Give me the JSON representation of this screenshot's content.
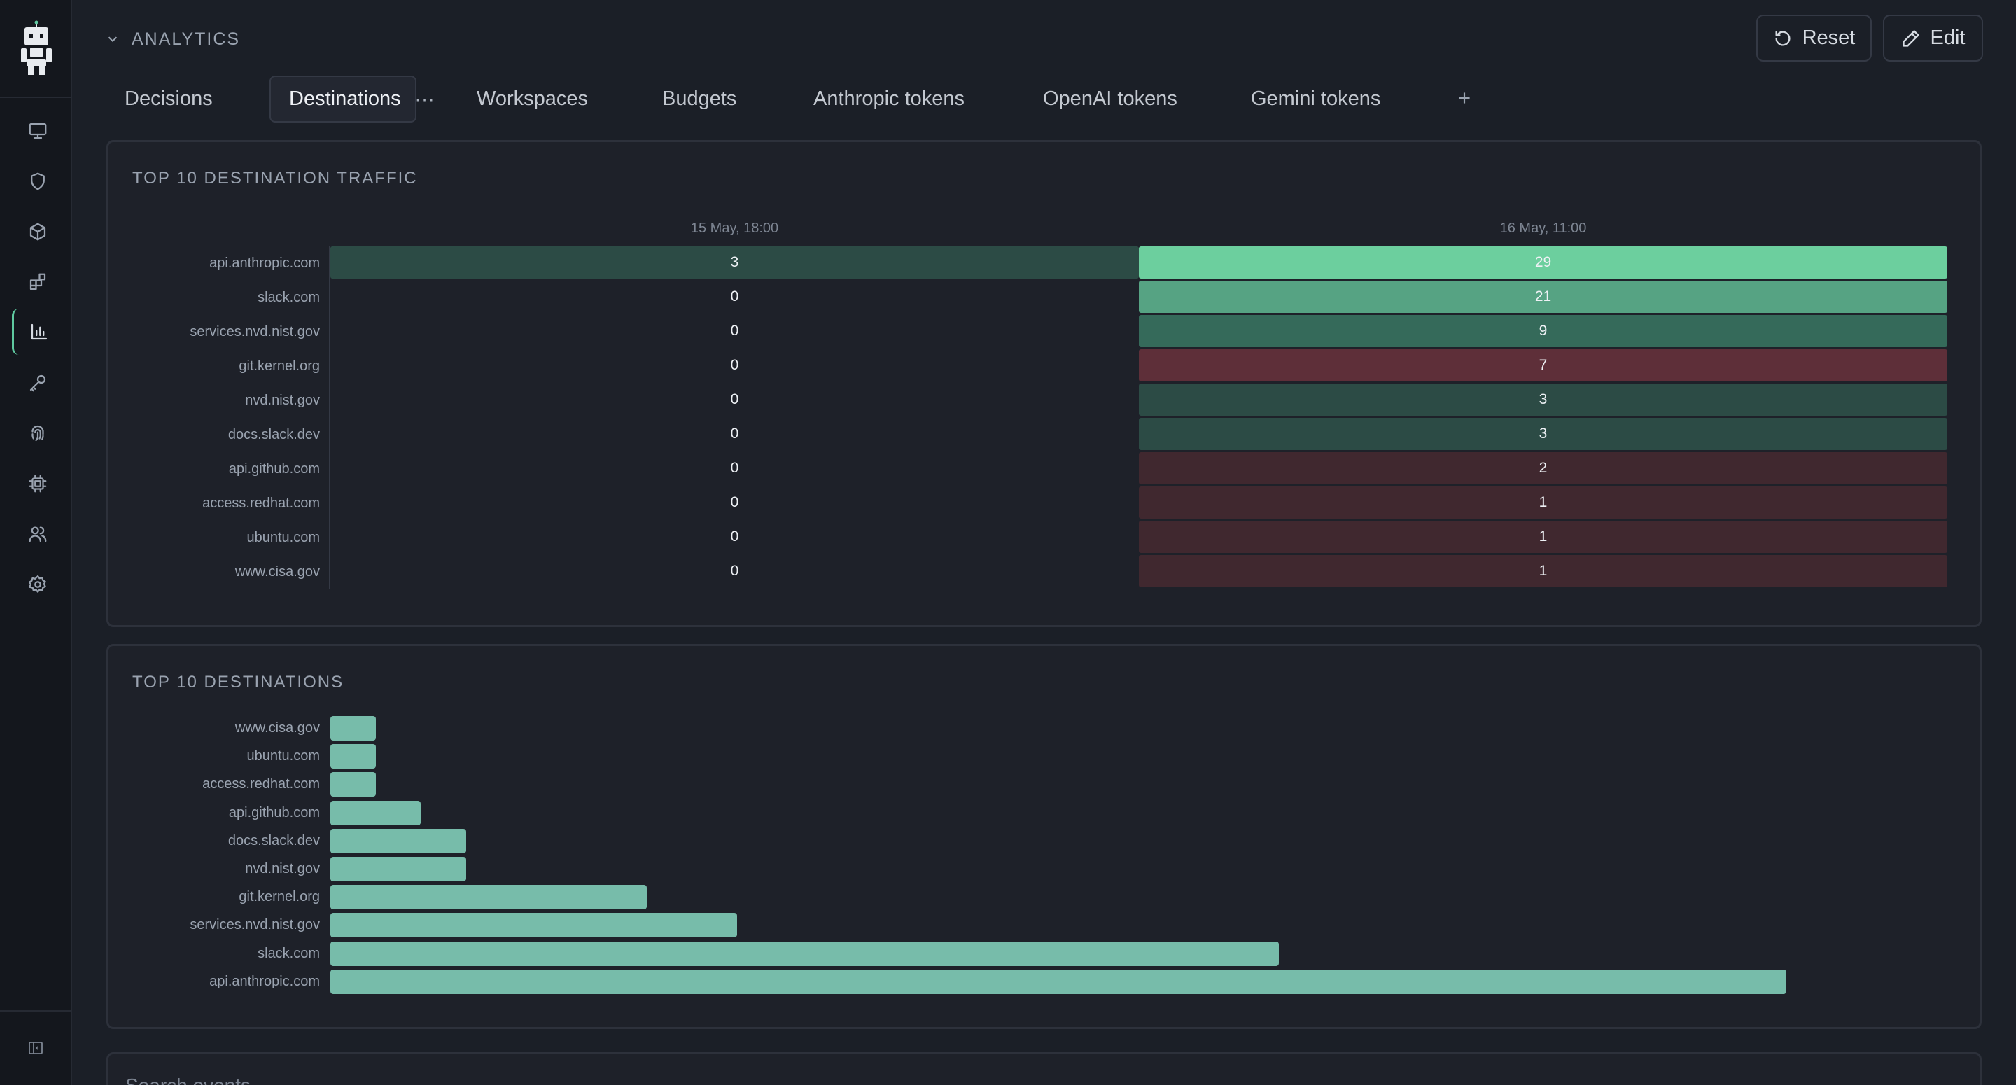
{
  "section": {
    "title": "ANALYTICS",
    "toggle_icon": "chevron-down-icon"
  },
  "header_buttons": {
    "reset_label": "Reset",
    "edit_label": "Edit"
  },
  "tabs": [
    {
      "label": "Decisions",
      "active": false
    },
    {
      "label": "Destinations",
      "active": true,
      "menu": "···"
    },
    {
      "label": "Workspaces",
      "active": false
    },
    {
      "label": "Budgets",
      "active": false
    },
    {
      "label": "Anthropic tokens",
      "active": false
    },
    {
      "label": "OpenAI tokens",
      "active": false
    },
    {
      "label": "Gemini tokens",
      "active": false
    }
  ],
  "sidebar": {
    "items": [
      {
        "icon": "monitor-icon"
      },
      {
        "icon": "shield-icon"
      },
      {
        "icon": "package-icon"
      },
      {
        "icon": "blocks-icon"
      },
      {
        "icon": "bar-chart-icon",
        "active": true
      },
      {
        "icon": "key-icon"
      },
      {
        "icon": "fingerprint-icon"
      },
      {
        "icon": "chip-icon"
      },
      {
        "icon": "users-icon"
      },
      {
        "icon": "settings-icon"
      }
    ],
    "bottom_icon": "panel-collapse-icon"
  },
  "heatmap": {
    "title": "TOP 10 DESTINATION TRAFFIC",
    "columns": [
      "15 May, 18:00",
      "16 May, 11:00"
    ],
    "rows": [
      {
        "label": "api.anthropic.com",
        "values": [
          3,
          29
        ]
      },
      {
        "label": "slack.com",
        "values": [
          0,
          21
        ]
      },
      {
        "label": "services.nvd.nist.gov",
        "values": [
          0,
          9
        ]
      },
      {
        "label": "git.kernel.org",
        "values": [
          0,
          7
        ]
      },
      {
        "label": "nvd.nist.gov",
        "values": [
          0,
          3
        ]
      },
      {
        "label": "docs.slack.dev",
        "values": [
          0,
          3
        ]
      },
      {
        "label": "api.github.com",
        "values": [
          0,
          2
        ]
      },
      {
        "label": "access.redhat.com",
        "values": [
          0,
          1
        ]
      },
      {
        "label": "ubuntu.com",
        "values": [
          0,
          1
        ]
      },
      {
        "label": "www.cisa.gov",
        "values": [
          0,
          1
        ]
      }
    ],
    "colors": {
      "max": "#6ccf9e",
      "high": "#56a383",
      "mid": "#356a5a",
      "low": "#2c4b45",
      "alert": "#5e2f39",
      "dim": "#40282f"
    }
  },
  "chart_data": {
    "type": "bar",
    "orientation": "horizontal",
    "title": "TOP 10 DESTINATIONS",
    "categories": [
      "www.cisa.gov",
      "ubuntu.com",
      "access.redhat.com",
      "api.github.com",
      "docs.slack.dev",
      "nvd.nist.gov",
      "git.kernel.org",
      "services.nvd.nist.gov",
      "slack.com",
      "api.anthropic.com"
    ],
    "values": [
      1,
      1,
      1,
      2,
      3,
      3,
      7,
      9,
      21,
      32
    ],
    "xlim": [
      0,
      33
    ],
    "bar_color": "#77bcaa"
  },
  "search": {
    "placeholder": "Search events..."
  }
}
